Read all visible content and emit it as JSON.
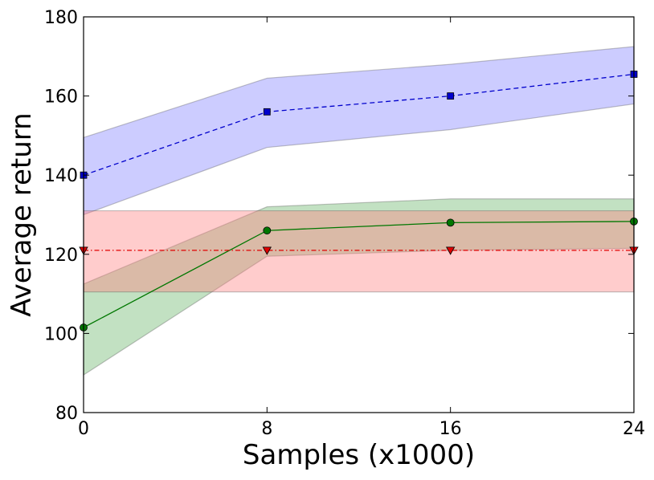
{
  "chart_data": {
    "type": "line",
    "title": "",
    "xlabel": "Samples (x1000)",
    "ylabel": "Average return",
    "xlim": [
      0,
      24
    ],
    "ylim": [
      80,
      180
    ],
    "xticks": [
      0,
      8,
      16,
      24
    ],
    "yticks": [
      80,
      100,
      120,
      140,
      160,
      180
    ],
    "grid": false,
    "legend": "none",
    "x": [
      0,
      8,
      16,
      24
    ],
    "series": [
      {
        "name": "blue-squares",
        "color": "#0000cc",
        "band_color": "#8080ff",
        "line_style": "dashed",
        "marker": "square",
        "values": [
          140,
          156,
          160,
          165.5
        ],
        "lower": [
          130,
          147,
          151.5,
          158
        ],
        "upper": [
          149.5,
          164.5,
          168,
          172.5
        ]
      },
      {
        "name": "green-circles",
        "color": "#007700",
        "band_color": "#66b366",
        "line_style": "solid",
        "marker": "circle",
        "values": [
          101.5,
          126,
          128,
          128.3
        ],
        "lower": [
          89.5,
          119.5,
          121,
          121.5
        ],
        "upper": [
          112.5,
          132,
          134,
          134
        ]
      },
      {
        "name": "red-triangles",
        "color": "#e00000",
        "band_color": "#ff8080",
        "line_style": "dashdot",
        "marker": "triangle-down",
        "values": [
          121,
          121,
          121,
          121
        ],
        "lower": [
          110.5,
          110.5,
          110.5,
          110.5
        ],
        "upper": [
          131,
          131,
          131,
          131
        ]
      }
    ]
  }
}
